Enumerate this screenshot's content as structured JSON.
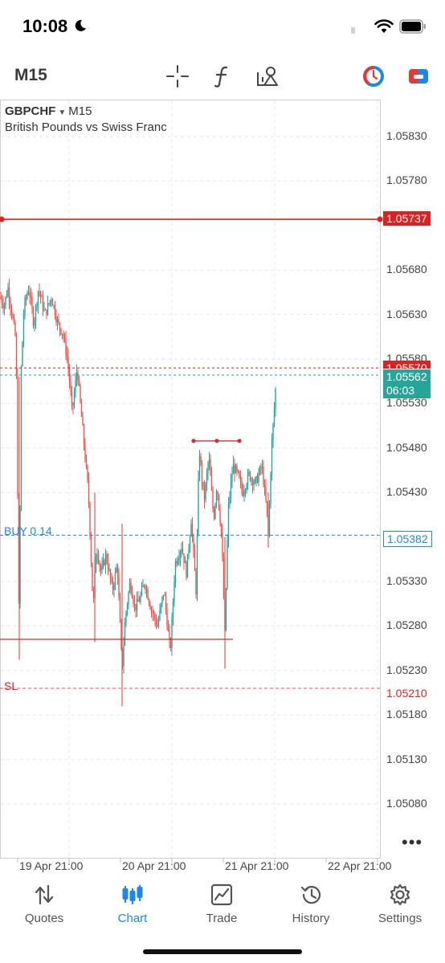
{
  "status_bar": {
    "time": "10:08"
  },
  "toolbar": {
    "timeframe": "M15",
    "icons": [
      "crosshair-icon",
      "function-icon",
      "objects-icon",
      "one-click-trading-icon",
      "trade-toggle-icon"
    ]
  },
  "chart": {
    "symbol": "GBPCHF",
    "timeframe": "M15",
    "description": "British Pounds vs Swiss Franc",
    "y_ticks": [
      "1.05830",
      "1.05780",
      "1.05680",
      "1.05630",
      "1.05580",
      "1.05530",
      "1.05480",
      "1.05430",
      "1.05330",
      "1.05280",
      "1.05230",
      "1.05180",
      "1.05130",
      "1.05080"
    ],
    "x_ticks": [
      "19 Apr 21:00",
      "20 Apr 21:00",
      "21 Apr 21:00",
      "22 Apr 21:00"
    ],
    "alert_price": "1.05737",
    "ask_price": "1.05570",
    "bid_price": "1.05562",
    "countdown": "06:03",
    "position_label": "BUY 0.14",
    "position_price": "1.05382",
    "sl_label": "SL",
    "sl_price": "1.05210",
    "colors": {
      "bull": "#26a69a",
      "bear": "#ef5350",
      "alert": "#e02020",
      "position": "#1e88e5"
    }
  },
  "chart_data": {
    "type": "candlestick",
    "symbol": "GBPCHF",
    "x": [
      "19 Apr 21:00",
      "20 Apr 21:00",
      "21 Apr 21:00",
      "22 Apr 21:00"
    ],
    "close_path": [
      [
        0,
        1.0565
      ],
      [
        5,
        1.0564
      ],
      [
        10,
        1.0566
      ],
      [
        15,
        1.0563
      ],
      [
        20,
        1.056
      ],
      [
        24,
        1.0526
      ],
      [
        26,
        1.0556
      ],
      [
        30,
        1.0564
      ],
      [
        36,
        1.0566
      ],
      [
        42,
        1.0562
      ],
      [
        48,
        1.0566
      ],
      [
        56,
        1.0563
      ],
      [
        64,
        1.0565
      ],
      [
        72,
        1.0562
      ],
      [
        78,
        1.0561
      ],
      [
        84,
        1.0558
      ],
      [
        90,
        1.0552
      ],
      [
        96,
        1.0557
      ],
      [
        104,
        1.0549
      ],
      [
        110,
        1.0543
      ],
      [
        116,
        1.053
      ],
      [
        120,
        1.0537
      ],
      [
        126,
        1.0534
      ],
      [
        132,
        1.0536
      ],
      [
        140,
        1.0532
      ],
      [
        146,
        1.0535
      ],
      [
        152,
        1.0523
      ],
      [
        156,
        1.0529
      ],
      [
        162,
        1.0533
      ],
      [
        168,
        1.053
      ],
      [
        174,
        1.0531
      ],
      [
        180,
        1.0533
      ],
      [
        188,
        1.053
      ],
      [
        196,
        1.0528
      ],
      [
        204,
        1.0532
      ],
      [
        212,
        1.0525
      ],
      [
        218,
        1.0535
      ],
      [
        226,
        1.0537
      ],
      [
        232,
        1.0534
      ],
      [
        238,
        1.054
      ],
      [
        244,
        1.0532
      ],
      [
        248,
        1.0548
      ],
      [
        254,
        1.0542
      ],
      [
        260,
        1.0547
      ],
      [
        266,
        1.054
      ],
      [
        270,
        1.0544
      ],
      [
        276,
        1.0538
      ],
      [
        280,
        1.0527
      ],
      [
        284,
        1.0541
      ],
      [
        290,
        1.0546
      ],
      [
        296,
        1.0545
      ],
      [
        302,
        1.0543
      ],
      [
        310,
        1.0545
      ],
      [
        318,
        1.0544
      ],
      [
        326,
        1.0546
      ],
      [
        332,
        1.0541
      ],
      [
        334,
        1.0538
      ],
      [
        338,
        1.0548
      ],
      [
        342,
        1.0553
      ],
      [
        344,
        1.05562
      ]
    ],
    "levels": {
      "alert": 1.05737,
      "ask": 1.0557,
      "bid": 1.05562,
      "position": 1.05382,
      "stop_loss": 1.0521,
      "support": 1.05265
    }
  },
  "tabs": [
    {
      "label": "Quotes",
      "icon": "quotes-icon",
      "active": false
    },
    {
      "label": "Chart",
      "icon": "chart-icon",
      "active": true
    },
    {
      "label": "Trade",
      "icon": "trade-icon",
      "active": false
    },
    {
      "label": "History",
      "icon": "history-icon",
      "active": false
    },
    {
      "label": "Settings",
      "icon": "settings-icon",
      "active": false
    }
  ]
}
